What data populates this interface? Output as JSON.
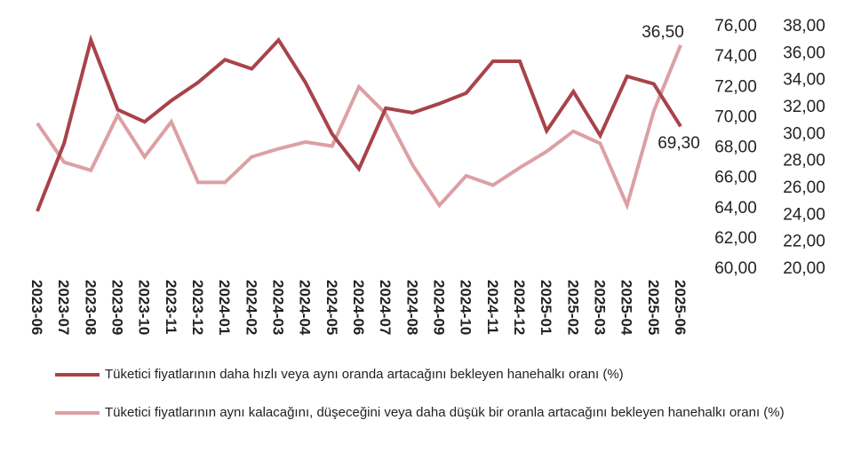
{
  "chart_data": {
    "type": "line",
    "categories": [
      "2023-06",
      "2023-07",
      "2023-08",
      "2023-09",
      "2023-10",
      "2023-11",
      "2023-12",
      "2024-01",
      "2024-02",
      "2024-03",
      "2024-04",
      "2024-05",
      "2024-06",
      "2024-07",
      "2024-08",
      "2024-09",
      "2024-10",
      "2024-11",
      "2024-12",
      "2025-01",
      "2025-02",
      "2025-03",
      "2025-04",
      "2025-05",
      "2025-06"
    ],
    "series": [
      {
        "name": "Tüketici fiyatlarının daha hızlı veya aynı oranda artacağını bekleyen hanehalkı oranı (%)",
        "axis": "left",
        "color": "#a8434a",
        "values": [
          63.7,
          68.2,
          75.0,
          70.4,
          69.6,
          71.0,
          72.2,
          73.7,
          73.1,
          75.0,
          72.2,
          68.8,
          66.5,
          70.5,
          70.2,
          70.8,
          71.5,
          73.6,
          73.6,
          69.0,
          71.6,
          68.7,
          72.6,
          72.1,
          69.3
        ]
      },
      {
        "name": "Tüketici fiyatlarının aynı kalacağını, düşeceğini veya daha düşük bir oranla artacağını bekleyen hanehalkı oranı (%)",
        "axis": "right",
        "color": "#dca0a4",
        "values": [
          30.7,
          27.8,
          27.2,
          31.3,
          28.2,
          30.8,
          26.3,
          26.3,
          28.2,
          28.8,
          29.3,
          29.0,
          33.4,
          31.4,
          27.6,
          24.6,
          26.8,
          26.1,
          27.4,
          28.6,
          30.1,
          29.2,
          24.6,
          31.6,
          36.5
        ]
      }
    ],
    "ylim_left": [
      60,
      76
    ],
    "yticks_left": [
      "60,00",
      "62,00",
      "64,00",
      "66,00",
      "68,00",
      "70,00",
      "72,00",
      "74,00",
      "76,00"
    ],
    "ylim_right": [
      20,
      38
    ],
    "yticks_right": [
      "20,00",
      "22,00",
      "24,00",
      "26,00",
      "28,00",
      "30,00",
      "32,00",
      "34,00",
      "36,00",
      "38,00"
    ],
    "annotations": {
      "left_last": "69,30",
      "right_last": "36,50"
    },
    "grid": false,
    "legend_position": "bottom"
  }
}
